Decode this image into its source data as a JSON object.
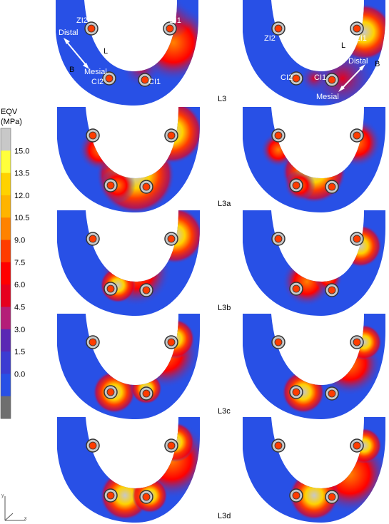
{
  "legend": {
    "title_line1": "EQV",
    "title_line2": "(MPa)",
    "ticks": [
      "15.0",
      "13.5",
      "12.0",
      "10.5",
      "9.0",
      "7.5",
      "6.0",
      "4.5",
      "3.0",
      "1.5",
      "0.0"
    ],
    "colors": [
      "#c8c8c8",
      "#ffff3c",
      "#ffd200",
      "#ffb400",
      "#ff8200",
      "#ff3c00",
      "#ff0000",
      "#e6001e",
      "#b41e78",
      "#5a28b4",
      "#3c3cd2",
      "#2850e6",
      "#6e6e6e"
    ]
  },
  "rows": [
    {
      "label": "L3"
    },
    {
      "label": "L3a"
    },
    {
      "label": "L3b"
    },
    {
      "label": "L3c"
    },
    {
      "label": "L3d"
    }
  ],
  "annotations_left": {
    "zi2": "ZI2",
    "zi1": "ZI1",
    "distal": "Distal",
    "mesial": "Mesial",
    "b": "B",
    "l": "L",
    "ci2": "CI2",
    "ci1": "CI1"
  },
  "annotations_right": {
    "zi2": "ZI2",
    "zi1": "ZI1",
    "distal": "Distal",
    "mesial": "Mesial",
    "b": "B",
    "l": "L",
    "ci2": "CI2",
    "ci1": "CI1"
  },
  "axis_triad": {
    "y": "y",
    "x": "x"
  }
}
